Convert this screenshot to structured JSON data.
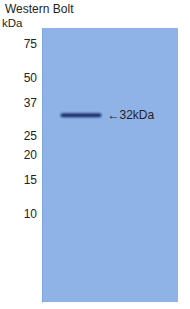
{
  "chart_data": {
    "type": "blot",
    "title": "Western Bolt",
    "y_label": "kDa",
    "categories": [
      null
    ],
    "values": [
      32
    ],
    "value_labels": [
      "←32kDa"
    ],
    "data_labels": true,
    "log": "y",
    "ylim": [
      3.5,
      90
    ],
    "yticks": [
      75,
      50,
      37,
      25,
      20,
      15,
      10
    ],
    "color": "#8fb3e6",
    "band_color": "#1d2f6b"
  }
}
